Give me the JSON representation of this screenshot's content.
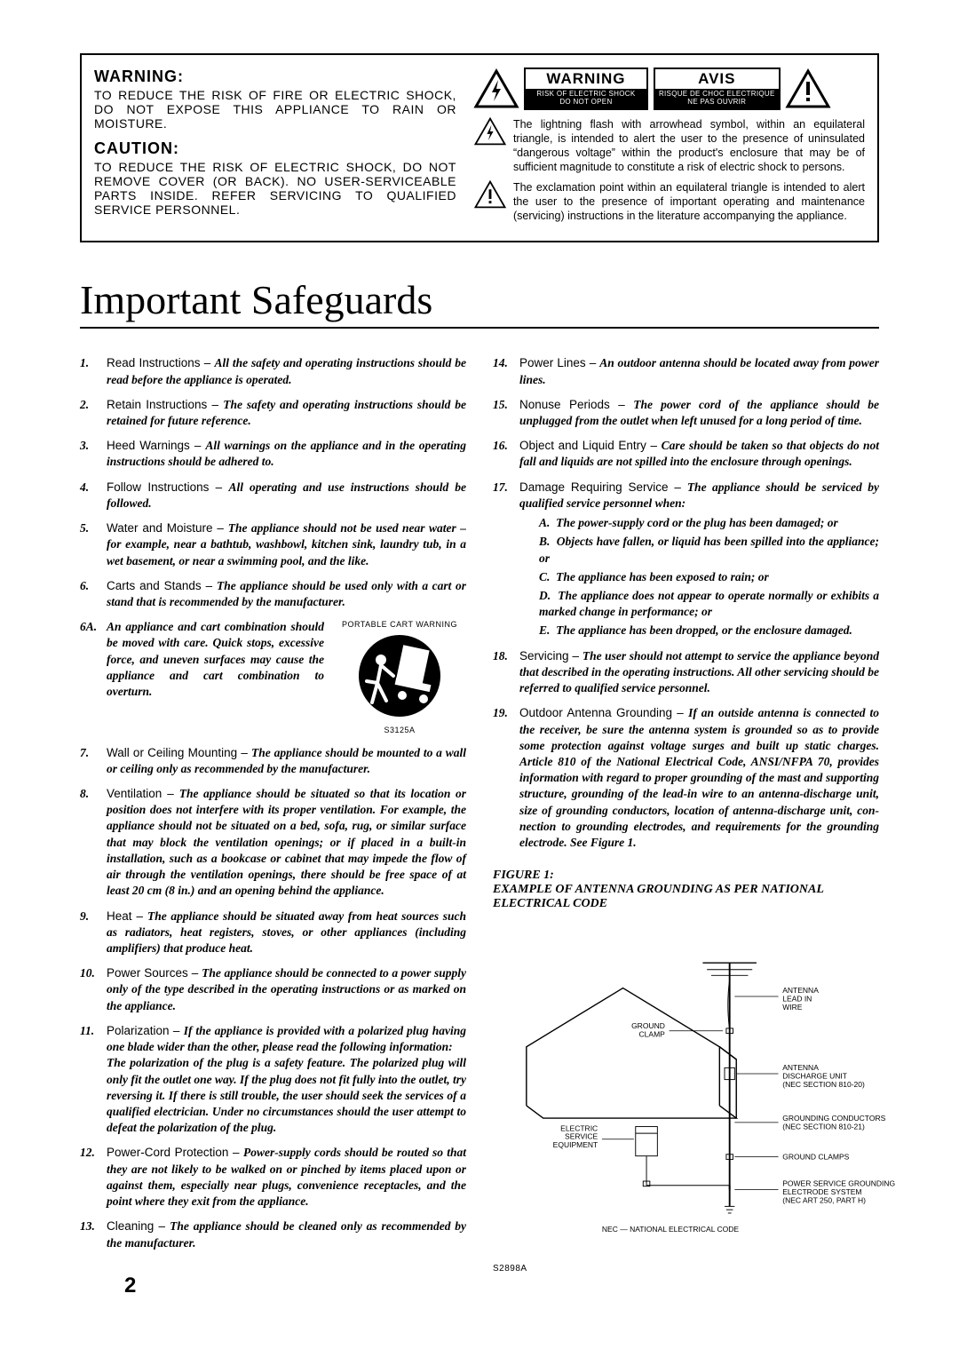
{
  "warning_box": {
    "warning_title": "WARNING:",
    "warning_text": "TO REDUCE THE RISK OF FIRE OR ELECTRIC SHOCK, DO NOT EXPOSE THIS APPLIANCE TO RAIN OR MOISTURE.",
    "caution_title": "CAUTION:",
    "caution_text": "TO REDUCE THE RISK OF ELECTRIC SHOCK, DO NOT REMOVE COVER (OR BACK). NO USER-SERVICEABLE PARTS INSIDE. REFER SERVICING TO QUALIFIED SERVICE PERSONNEL.",
    "label_warning": {
      "title": "WARNING",
      "sub1": "RISK OF ELECTRIC SHOCK",
      "sub2": "DO NOT OPEN"
    },
    "label_avis": {
      "title": "AVIS",
      "sub1": "RISQUE DE CHOC ELECTRIQUE",
      "sub2": "NE PAS OUVRIR"
    },
    "bolt_text": "The lightning flash with arrowhead symbol, within an equilateral triangle, is intended to alert the user to the presence of uninsulated “dangerous voltage” within the product's enclosure that may be of sufficient magnitude to constitute a risk of electric shock to persons.",
    "excl_text": "The exclamation point within an equilateral triangle is intended to alert the user to the presence of important operating and maintenance (servicing) instructions in the literature accompanying the appliance."
  },
  "main_title": "Important Safeguards",
  "left_items": [
    {
      "n": "1.",
      "lead": "Read Instructions – ",
      "body": "All the safety and operating instructions should be read before the appliance is operated."
    },
    {
      "n": "2.",
      "lead": "Retain Instructions – ",
      "body": "The safety and operating instructions should be retained for future reference."
    },
    {
      "n": "3.",
      "lead": "Heed Warnings – ",
      "body": "All warnings on the appliance and in the operating instructions should be adhered to."
    },
    {
      "n": "4.",
      "lead": "Follow Instructions – ",
      "body": "All operating and use instructions should be followed."
    },
    {
      "n": "5.",
      "lead": "Water and Moisture – ",
      "body": "The appliance should not be used near water – for example, near a bathtub, washbowl, kitchen sink, laundry tub, in a wet basement, or near a swimming pool, and the like."
    },
    {
      "n": "6.",
      "lead": "Carts and Stands – ",
      "body": "The appliance should be used only with a cart or stand that is recom­mended by the manufacturer."
    },
    {
      "n": "6A.",
      "lead": "",
      "body": "An appliance and cart combina­tion should be moved with care. Quick stops, excessive force, and uneven surfaces may cause the appliance and cart combina­tion to overturn."
    },
    {
      "n": "7.",
      "lead": "Wall or Ceiling Mounting – ",
      "body": "The appliance should be mounted to a wall or ceiling only as recommended by the manufacturer."
    },
    {
      "n": "8.",
      "lead": "Ventilation – ",
      "body": "The appliance should be situated so that its loca­tion or position does not interfere with its proper ventilation. For example, the appliance should not be situated on a bed, sofa, rug, or similar surface that may block the ventilation openings; or if placed in a built-in installation, such as a book­case or cabinet that may impede the flow of air through the ventilation openings, there should be free space of at least 20 cm (8 in.) and an opening behind the appliance."
    },
    {
      "n": "9.",
      "lead": "Heat – ",
      "body": "The appliance should be situated away from heat sources such as radiators, heat registers, stoves, or other appli­ances (including amplifiers) that produce heat."
    },
    {
      "n": "10.",
      "lead": "Power Sources – ",
      "body": "The appliance should be connected to a power supply only of the type described in the operating instructions or as marked on the appliance."
    },
    {
      "n": "11.",
      "lead": "Polarization – ",
      "body": "If the appliance is provided with a polarized plug having one blade wider than the other, please read the fol­lowing information:\nThe polarization of the plug is a safety feature. The polarized plug will only fit the outlet one way. If the plug does not fit fully into the outlet, try reversing it. If there is still trouble, the user should seek the services of a qualified electrician. Under no circumstances should the user attempt to defeat the polar­ization of the plug."
    },
    {
      "n": "12.",
      "lead": "Power-Cord Protection – ",
      "body": "Power-supply cords should be routed so that they are not likely to be walked on or pinched by items placed upon or against them, especially near plugs, con­venience receptacles, and the point where they exit from the appliance."
    },
    {
      "n": "13.",
      "lead": "Cleaning – ",
      "body": "The appliance should be cleaned only as recom­mended by the manufacturer."
    }
  ],
  "right_items": [
    {
      "n": "14.",
      "lead": "Power Lines – ",
      "body": "An outdoor antenna should be located away from power lines."
    },
    {
      "n": "15.",
      "lead": "Nonuse Periods – ",
      "body": "The power cord of the appliance should be unplugged from the outlet when left unused for a long period of time."
    },
    {
      "n": "16.",
      "lead": "Object and Liquid Entry – ",
      "body": "Care should be taken so that objects do not fall and liquids are not spilled into the enclosure through openings."
    },
    {
      "n": "17.",
      "lead": "Damage Requiring Service – ",
      "body": "The appliance should be ser­viced by qualified service personnel when:"
    },
    {
      "n": "18.",
      "lead": "Servicing – ",
      "body": "The user should not attempt to service the appli­ance beyond that described in the operating instructions. All other servicing should be referred to qualified service person­nel."
    },
    {
      "n": "19.",
      "lead": "Outdoor Antenna Grounding – ",
      "body": "If an outside antenna is con­nected to the receiver, be sure the antenna system is grounded so as to provide some protection against voltage surges and built up static charges. Article 810 of the National Electrical Code, ANSI/NFPA 70, provides information with regard to proper grounding of the mast and supporting structure, ground­ing of the lead-in wire to an antenna-discharge unit, size of grounding conductors, location of antenna-discharge unit, con­nection to grounding electrodes, and requirements for the grounding electrode. See Figure 1."
    }
  ],
  "item17_sub": [
    {
      "l": "A.",
      "t": "The power-supply cord or the plug has been damaged; or"
    },
    {
      "l": "B.",
      "t": "Objects have fallen, or liquid has been spilled into the appliance; or"
    },
    {
      "l": "C.",
      "t": "The appliance has been exposed to rain; or"
    },
    {
      "l": "D.",
      "t": "The appliance does not appear to operate normally or exhibits a marked change in performance; or"
    },
    {
      "l": "E.",
      "t": "The appliance has been dropped, or the enclosure damaged."
    }
  ],
  "cart_warning_label": "PORTABLE CART WARNING",
  "cart_code": "S3125A",
  "figure1": {
    "title": "FIGURE 1:",
    "subtitle": "EXAMPLE OF ANTENNA GROUNDING AS PER NATIONAL ELECTRICAL CODE",
    "labels": {
      "antenna_lead": "ANTENNA LEAD IN WIRE",
      "ground_clamp_top": "GROUND CLAMP",
      "antenna_discharge": "ANTENNA DISCHARGE UNIT (NEC SECTION 810-20)",
      "electric_service": "ELECTRIC SERVICE EQUIPMENT",
      "grounding_conductors": "GROUNDING CONDUCTORS (NEC SECTION 810-21)",
      "ground_clamps": "GROUND CLAMPS",
      "power_service": "POWER SERVICE GROUNDING ELECTRODE SYSTEM (NEC ART 250, PART H)",
      "nec_note": "NEC — NATIONAL ELECTRICAL CODE",
      "code": "S2898A"
    }
  },
  "page_number": "2",
  "colors": {
    "black": "#000000",
    "white": "#ffffff"
  }
}
